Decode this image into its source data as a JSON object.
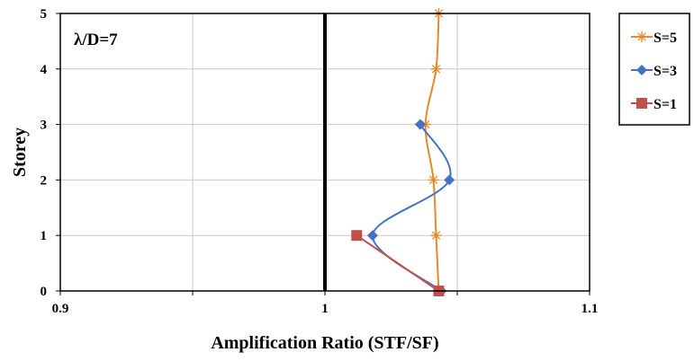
{
  "chart_data": {
    "type": "line",
    "annotation": "λ/D=7",
    "xlabel": "Amplification Ratio (STF/SF)",
    "ylabel": "Storey",
    "xlim": [
      0.9,
      1.1
    ],
    "ylim": [
      0,
      5
    ],
    "x_ticks": [
      0.9,
      0.95,
      1.0,
      1.05,
      1.1
    ],
    "x_tick_labels": [
      "0.9",
      "",
      "1",
      "",
      "1.1"
    ],
    "y_ticks": [
      0,
      1,
      2,
      3,
      4,
      5
    ],
    "y_tick_labels": [
      "0",
      "1",
      "2",
      "3",
      "4",
      "5"
    ],
    "grid": true,
    "reference_line_x": 1.0,
    "legend_position": "right",
    "series": [
      {
        "name": "S=5",
        "color": "#E5892C",
        "marker": "asterisk",
        "x": [
          1.043,
          1.042,
          1.041,
          1.038,
          1.042,
          1.043
        ],
        "y": [
          0,
          1,
          2,
          3,
          4,
          5
        ]
      },
      {
        "name": "S=3",
        "color": "#4472C4",
        "marker": "diamond",
        "x": [
          1.044,
          1.018,
          1.047,
          1.036
        ],
        "y": [
          0,
          1,
          2,
          3
        ]
      },
      {
        "name": "S=1",
        "color": "#C0504D",
        "marker": "square",
        "x": [
          1.043,
          1.012
        ],
        "y": [
          0,
          1
        ]
      }
    ]
  }
}
